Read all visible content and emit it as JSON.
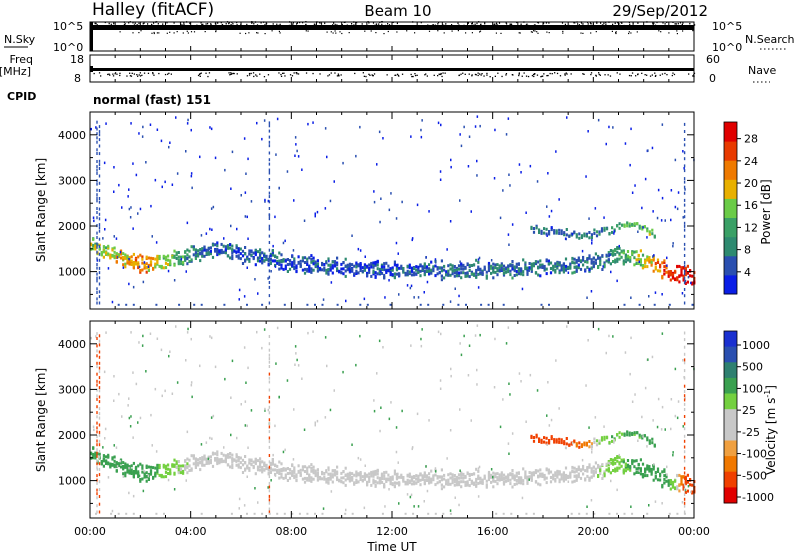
{
  "header": {
    "station": "Halley (fitACF)",
    "beam": "Beam 10",
    "date": "29/Sep/2012"
  },
  "strips": {
    "nsky_label": "N.Sky",
    "nsearch_label": "N.Search",
    "nsky_ticks": [
      "10^5",
      "10^0"
    ],
    "nsearch_ticks": [
      "10^5",
      "10^0"
    ],
    "freq_label_line1": "Freq",
    "freq_label_line2": "[MHz]",
    "freq_ticks": [
      "18",
      "8"
    ],
    "nave_label": "Nave",
    "nave_ticks": [
      "60",
      "0"
    ],
    "cpid_label": "CPID",
    "cpid_value": "normal (fast) 151"
  },
  "colors": {
    "power_scale": [
      "#0a1ee6",
      "#2a4fb0",
      "#2e8a70",
      "#3aa066",
      "#6acb47",
      "#e8b000",
      "#ef7a00",
      "#e83a00",
      "#e00000"
    ],
    "velocity_scale": [
      "#e00000",
      "#f04000",
      "#f07800",
      "#f0a040",
      "#c8c8c8",
      "#c8c8c8",
      "#74d040",
      "#3aa050",
      "#2e8070",
      "#2a4fb0",
      "#1a30d0"
    ]
  },
  "chart_data": [
    {
      "type": "heatmap",
      "panel": "power",
      "ylabel": "Slant Range [km]",
      "xlabel": "Time UT",
      "xlim": [
        "00:00",
        "24:00"
      ],
      "ylim": [
        180,
        4500
      ],
      "x_ticks": [
        "00:00",
        "04:00",
        "08:00",
        "12:00",
        "16:00",
        "20:00",
        "00:00"
      ],
      "y_ticks": [
        "1000",
        "2000",
        "3000",
        "4000"
      ],
      "colorbar_label": "Power [dB]",
      "colorbar_ticks": [
        "4",
        "8",
        "12",
        "16",
        "20",
        "24",
        "28"
      ],
      "colorbar_range": [
        0,
        31
      ],
      "echo_band_main": {
        "hours": [
          0,
          1,
          2,
          3,
          4,
          5,
          6,
          8,
          10,
          12,
          14,
          16,
          18,
          20,
          21,
          22,
          23,
          24
        ],
        "range_km": [
          1550,
          1300,
          1150,
          1200,
          1350,
          1450,
          1350,
          1150,
          1050,
          1000,
          1000,
          1000,
          1050,
          1150,
          1350,
          1200,
          950,
          850
        ],
        "power_db": [
          15,
          18,
          22,
          17,
          8,
          6,
          6,
          5,
          5,
          5,
          6,
          7,
          6,
          7,
          11,
          17,
          27,
          29
        ]
      },
      "echo_band_upper": {
        "hours": [
          17.5,
          18.5,
          19.5,
          20.5,
          21.5,
          22.5
        ],
        "range_km": [
          1900,
          1850,
          1750,
          1850,
          2050,
          1750
        ],
        "power_db": [
          6,
          6,
          7,
          9,
          14,
          16
        ]
      }
    },
    {
      "type": "heatmap",
      "panel": "velocity",
      "ylabel": "Slant Range [km]",
      "xlabel": "Time UT",
      "xlim": [
        "00:00",
        "24:00"
      ],
      "ylim": [
        180,
        4500
      ],
      "x_ticks": [
        "00:00",
        "04:00",
        "08:00",
        "12:00",
        "16:00",
        "20:00",
        "00:00"
      ],
      "y_ticks": [
        "1000",
        "2000",
        "3000",
        "4000"
      ],
      "colorbar_label": "Velocity [m s^-1]",
      "colorbar_ticks": [
        "1000",
        "500",
        "100",
        "25",
        "-25",
        "-100",
        "-500",
        "-1000"
      ],
      "echo_band_main": {
        "hours": [
          0,
          1,
          2,
          3,
          4,
          5,
          6,
          8,
          10,
          12,
          14,
          16,
          18,
          20,
          21,
          22,
          23,
          24
        ],
        "range_km": [
          1550,
          1300,
          1150,
          1200,
          1350,
          1450,
          1350,
          1150,
          1050,
          1000,
          1000,
          1000,
          1050,
          1150,
          1350,
          1200,
          950,
          850
        ],
        "velocity_ms": [
          150,
          120,
          200,
          60,
          0,
          0,
          0,
          0,
          0,
          0,
          0,
          0,
          0,
          0,
          80,
          150,
          120,
          -300
        ]
      },
      "echo_band_upper": {
        "hours": [
          17.5,
          18.5,
          19.5,
          20.5,
          21.5,
          22.5
        ],
        "range_km": [
          1900,
          1850,
          1750,
          1850,
          2050,
          1750
        ],
        "velocity_ms": [
          -120,
          -120,
          -100,
          90,
          110,
          120
        ]
      }
    }
  ]
}
